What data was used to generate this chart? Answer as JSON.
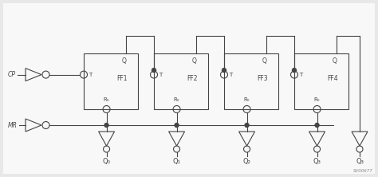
{
  "fig_width": 4.74,
  "fig_height": 2.22,
  "dpi": 100,
  "bg_color": "#e8e8e8",
  "box_bg": "#ffffff",
  "line_color": "#444444",
  "lw": 0.8,
  "ff_names": [
    "FF1",
    "FF2",
    "FF3",
    "FF4"
  ],
  "output_labels": [
    "Q₀",
    "Q₁",
    "Q₂",
    "Q₃"
  ],
  "watermark": "SV00677",
  "cp_label": "CP",
  "mr_label": "MR"
}
